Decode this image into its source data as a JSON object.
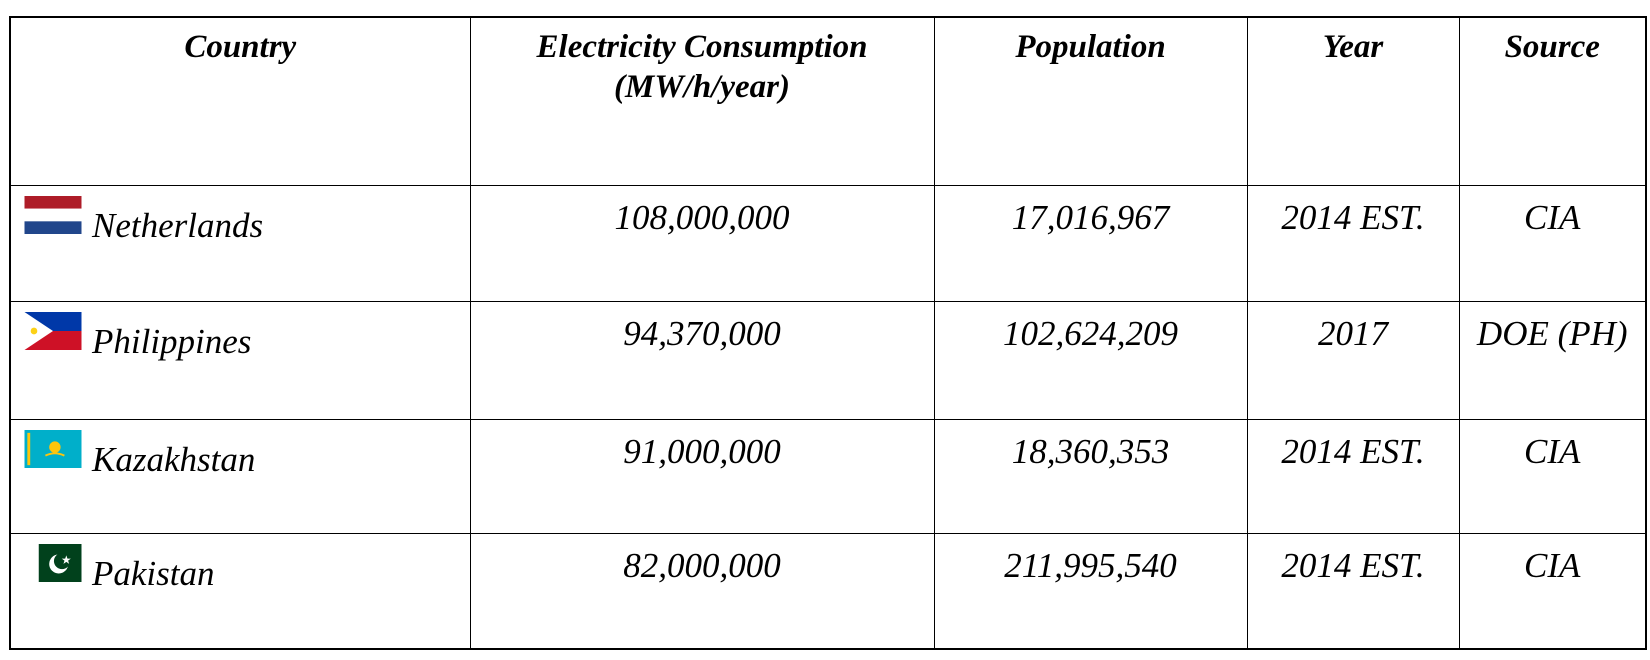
{
  "table": {
    "headers": {
      "country": "Country",
      "electricity_line1": "Electricity Consumption",
      "electricity_line2": "(MW/h/year)",
      "population": "Population",
      "year": "Year",
      "source": "Source"
    },
    "rows": [
      {
        "country": "Netherlands",
        "flag_icon": "netherlands-flag-icon",
        "electricity": "108,000,000",
        "population": "17,016,967",
        "year": "2014 EST.",
        "source": "CIA"
      },
      {
        "country": "Philippines",
        "flag_icon": "philippines-flag-icon",
        "electricity": "94,370,000",
        "population": "102,624,209",
        "year": "2017",
        "source": "DOE (PH)"
      },
      {
        "country": "Kazakhstan",
        "flag_icon": "kazakhstan-flag-icon",
        "electricity": "91,000,000",
        "population": "18,360,353",
        "year": "2014 EST.",
        "source": "CIA"
      },
      {
        "country": "Pakistan",
        "flag_icon": "pakistan-flag-icon",
        "electricity": "82,000,000",
        "population": "211,995,540",
        "year": "2014 EST.",
        "source": "CIA"
      }
    ]
  },
  "colors": {
    "border": "#000000",
    "text": "#000000",
    "netherlands_red": "#ae1c28",
    "netherlands_blue": "#21468b",
    "philippines_blue": "#0038a8",
    "philippines_red": "#ce1126",
    "kazakhstan_sky": "#00afca",
    "kazakhstan_gold": "#fec50c",
    "pakistan_green": "#01411c"
  }
}
